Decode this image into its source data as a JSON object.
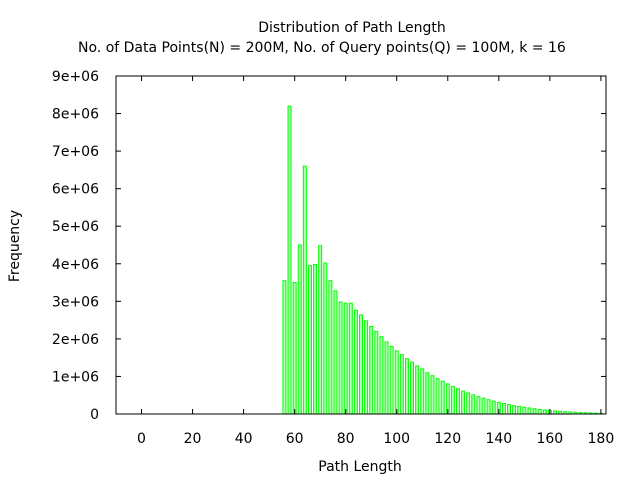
{
  "chart_data": {
    "type": "bar",
    "title": "Distribution of Path Length",
    "subtitle": "No. of Data Points(N) = 200M,  No. of Query points(Q) = 100M, k = 16",
    "xlabel": "Path Length",
    "ylabel": "Frequency",
    "xlim": [
      -10,
      182
    ],
    "ylim": [
      0,
      9000000
    ],
    "x_ticks": [
      0,
      20,
      40,
      60,
      80,
      100,
      120,
      140,
      160,
      180
    ],
    "x_tick_labels": [
      "0",
      "20",
      "40",
      "60",
      "80",
      "100",
      "120",
      "140",
      "160",
      "180"
    ],
    "y_ticks": [
      0,
      1000000,
      2000000,
      3000000,
      4000000,
      5000000,
      6000000,
      7000000,
      8000000,
      9000000
    ],
    "y_tick_labels": [
      "0",
      "1e+06",
      "2e+06",
      "3e+06",
      "4e+06",
      "5e+06",
      "6e+06",
      "7e+06",
      "8e+06",
      "9e+06"
    ],
    "grid": false,
    "legend": "none",
    "bar_color": "#00ff00",
    "bar_fill": "#b0ffb0",
    "x": [
      56,
      58,
      60,
      62,
      64,
      66,
      68,
      70,
      72,
      74,
      76,
      78,
      80,
      82,
      84,
      86,
      88,
      90,
      92,
      94,
      96,
      98,
      100,
      102,
      104,
      106,
      108,
      110,
      112,
      114,
      116,
      118,
      120,
      122,
      124,
      126,
      128,
      130,
      132,
      134,
      136,
      138,
      140,
      142,
      144,
      146,
      148,
      150,
      152,
      154,
      156,
      158,
      160,
      162,
      164,
      166,
      168,
      170,
      172,
      174,
      176,
      178,
      180
    ],
    "values": [
      3550000,
      8200000,
      3500000,
      4500000,
      6600000,
      3950000,
      3980000,
      4480000,
      4020000,
      3550000,
      3280000,
      2980000,
      2950000,
      2950000,
      2760000,
      2640000,
      2480000,
      2330000,
      2200000,
      2060000,
      1920000,
      1800000,
      1680000,
      1580000,
      1470000,
      1380000,
      1280000,
      1200000,
      1100000,
      1020000,
      940000,
      870000,
      800000,
      730000,
      670000,
      610000,
      560000,
      510000,
      460000,
      420000,
      380000,
      340000,
      310000,
      280000,
      250000,
      220000,
      200000,
      180000,
      160000,
      140000,
      120000,
      108000,
      95000,
      82000,
      72000,
      62000,
      55000,
      47000,
      40000,
      34000,
      28000,
      22000,
      16000
    ]
  }
}
